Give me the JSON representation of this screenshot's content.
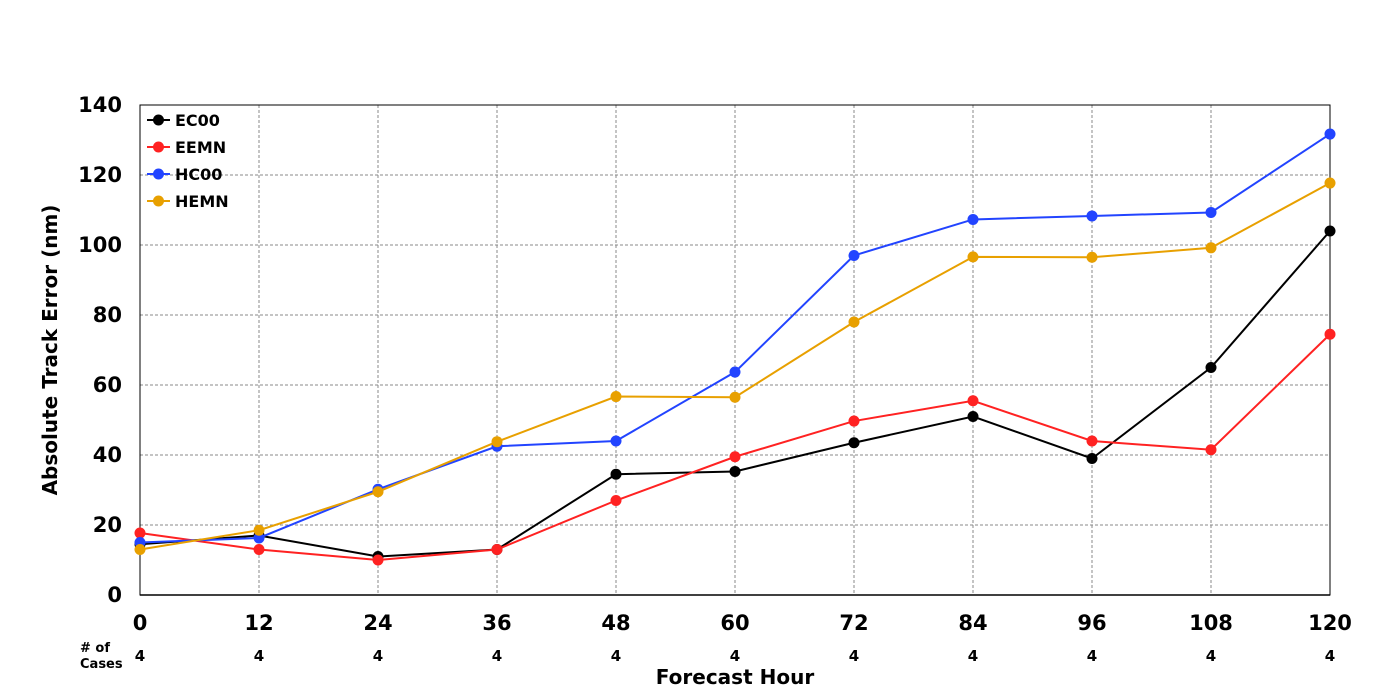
{
  "chart_data": {
    "type": "line",
    "xlabel": "Forecast Hour",
    "ylabel": "Absolute Track Error (nm)",
    "x": [
      0,
      12,
      24,
      36,
      48,
      60,
      72,
      84,
      96,
      108,
      120
    ],
    "xticks": [
      "0",
      "12",
      "24",
      "36",
      "48",
      "60",
      "72",
      "84",
      "96",
      "108",
      "120"
    ],
    "yticks": [
      "0",
      "20",
      "40",
      "60",
      "80",
      "100",
      "120",
      "140"
    ],
    "xlim": [
      0,
      120
    ],
    "ylim": [
      0,
      140
    ],
    "grid": true,
    "legend_position": "top-left",
    "cases_label_line1": "# of",
    "cases_label_line2": "Cases",
    "cases": [
      "4",
      "4",
      "4",
      "4",
      "4",
      "4",
      "4",
      "4",
      "4",
      "4",
      "4"
    ],
    "series": [
      {
        "name": "EC00",
        "color": "#000000",
        "values": [
          14.5,
          17,
          11,
          13,
          34.5,
          35.3,
          43.5,
          51,
          39,
          65,
          104
        ]
      },
      {
        "name": "EEMN",
        "color": "#ff2222",
        "values": [
          17.7,
          13,
          10,
          13,
          27,
          39.5,
          49.7,
          55.5,
          44,
          41.5,
          74.5
        ]
      },
      {
        "name": "HC00",
        "color": "#2244ff",
        "values": [
          15,
          16.3,
          30.2,
          42.5,
          44,
          63.7,
          97,
          107.3,
          108.3,
          109.3,
          131.7
        ]
      },
      {
        "name": "HEMN",
        "color": "#e8a000",
        "values": [
          13,
          18.5,
          29.5,
          43.8,
          56.7,
          56.5,
          78,
          96.6,
          96.5,
          99.2,
          117.7
        ]
      }
    ]
  }
}
